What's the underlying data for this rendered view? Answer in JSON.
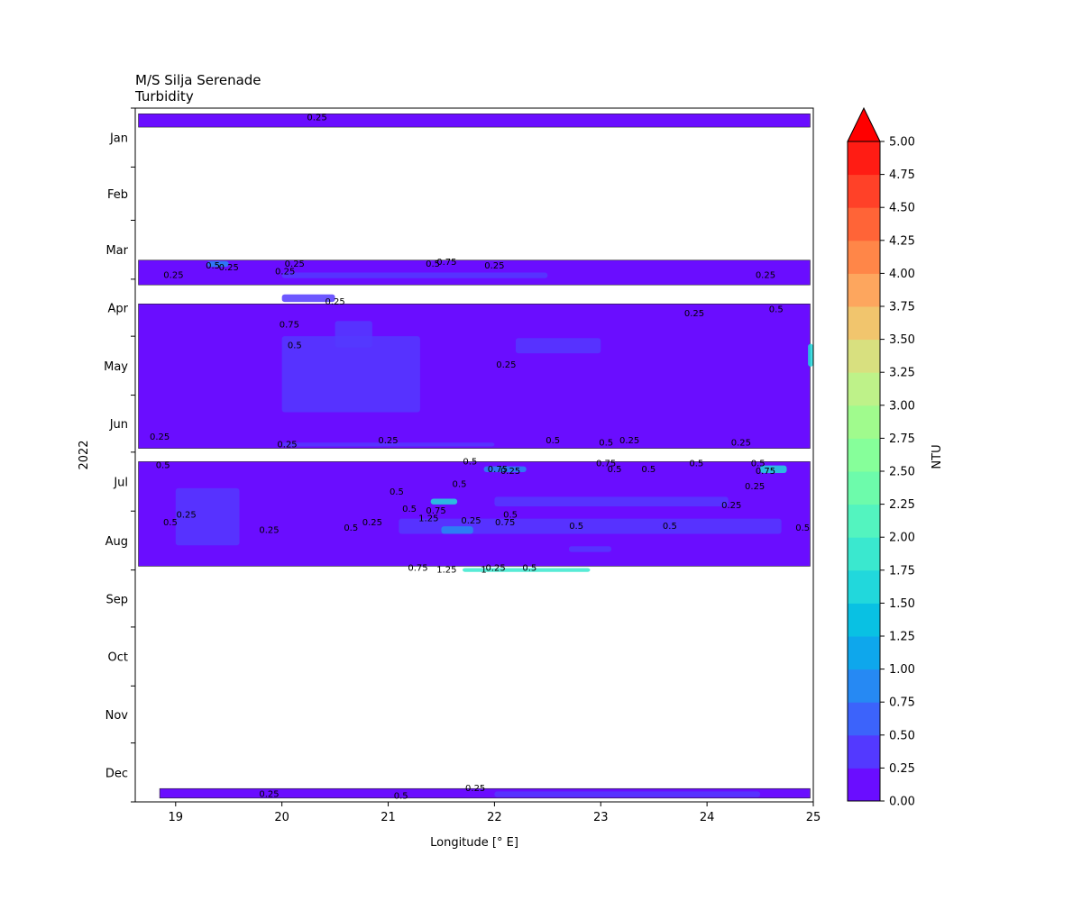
{
  "chart_data": {
    "type": "heatmap",
    "title_line1": "M/S Silja Serenade",
    "title_line2": "Turbidity",
    "xlabel": "Longitude [° E]",
    "ylabel": "2022",
    "xlim": [
      18.62,
      25.0
    ],
    "x_ticks": [
      "19",
      "20",
      "21",
      "22",
      "23",
      "24",
      "25"
    ],
    "y_months": [
      "Jan",
      "Feb",
      "Mar",
      "Apr",
      "May",
      "Jun",
      "Jul",
      "Aug",
      "Sep",
      "Oct",
      "Nov",
      "Dec"
    ],
    "colorbar": {
      "label": "NTU",
      "extend": "max",
      "levels": [
        "0.00",
        "0.25",
        "0.50",
        "0.75",
        "1.00",
        "1.25",
        "1.50",
        "1.75",
        "2.00",
        "2.25",
        "2.50",
        "2.75",
        "3.00",
        "3.25",
        "3.50",
        "3.75",
        "4.00",
        "4.25",
        "4.50",
        "4.75",
        "5.00"
      ],
      "colors": [
        "#6a0dff",
        "#5339ff",
        "#3c63fb",
        "#2689f3",
        "#0ea7ec",
        "#09c1e3",
        "#21d8dc",
        "#3ae8cf",
        "#53f4bf",
        "#6dfbab",
        "#86ff9a",
        "#a0fb8d",
        "#bef289",
        "#d8e07f",
        "#f1c56d",
        "#fda65e",
        "#ff8648",
        "#ff6437",
        "#ff4128",
        "#ff1c14"
      ],
      "extend_color": "#ff0000"
    },
    "bands": [
      {
        "start_doy": 3,
        "end_doy": 10,
        "x_start": 18.65,
        "x_end": 24.97,
        "fill": "#6a0dff"
      },
      {
        "start_doy": 80,
        "end_doy": 93,
        "x_start": 18.65,
        "x_end": 24.97,
        "fill": "#6a0dff"
      },
      {
        "start_doy": 103,
        "end_doy": 179,
        "x_start": 18.65,
        "x_end": 24.97,
        "fill": "#6a0dff"
      },
      {
        "start_doy": 186,
        "end_doy": 241,
        "x_start": 18.65,
        "x_end": 24.97,
        "fill": "#6a0dff"
      },
      {
        "start_doy": 358,
        "end_doy": 363,
        "x_start": 18.85,
        "x_end": 24.97,
        "fill": "#6a0dff"
      }
    ],
    "patches": [
      {
        "x": 20.0,
        "doy": 100,
        "w": 0.5,
        "h": 4,
        "c": "#5339ff"
      },
      {
        "x": 20.0,
        "doy": 140,
        "w": 1.3,
        "h": 40,
        "c": "#5339ff"
      },
      {
        "x": 22.2,
        "doy": 125,
        "w": 0.8,
        "h": 8,
        "c": "#5339ff"
      },
      {
        "x": 20.5,
        "doy": 119,
        "w": 0.35,
        "h": 14,
        "c": "#5339ff"
      },
      {
        "x": 22.0,
        "doy": 207,
        "w": 2.2,
        "h": 5,
        "c": "#5339ff"
      },
      {
        "x": 21.1,
        "doy": 220,
        "w": 3.6,
        "h": 8,
        "c": "#5339ff"
      },
      {
        "x": 19.0,
        "doy": 215,
        "w": 0.6,
        "h": 30,
        "c": "#5339ff"
      },
      {
        "x": 21.5,
        "doy": 222,
        "w": 0.3,
        "h": 4,
        "c": "#2689f3"
      },
      {
        "x": 21.4,
        "doy": 207,
        "w": 0.25,
        "h": 3,
        "c": "#21d8dc"
      },
      {
        "x": 21.9,
        "doy": 190,
        "w": 0.4,
        "h": 3,
        "c": "#2689f3"
      },
      {
        "x": 22.7,
        "doy": 232,
        "w": 0.4,
        "h": 3,
        "c": "#5339ff"
      },
      {
        "x": 24.5,
        "doy": 190,
        "w": 0.25,
        "h": 4,
        "c": "#21d8dc"
      },
      {
        "x": 21.7,
        "doy": 243,
        "w": 1.2,
        "h": 2,
        "c": "#3ae8cf"
      },
      {
        "x": 20.0,
        "doy": 88,
        "w": 2.5,
        "h": 3,
        "c": "#5339ff"
      },
      {
        "x": 22.0,
        "doy": 361,
        "w": 2.5,
        "h": 3,
        "c": "#5339ff"
      },
      {
        "x": 19.3,
        "doy": 82,
        "w": 0.2,
        "h": 3,
        "c": "#2689f3"
      },
      {
        "x": 24.95,
        "doy": 130,
        "w": 0.05,
        "h": 12,
        "c": "#21d8dc"
      },
      {
        "x": 20.0,
        "doy": 177,
        "w": 2.0,
        "h": 2,
        "c": "#5339ff"
      }
    ],
    "contour_labels": [
      {
        "x": 20.33,
        "doy": 5,
        "t": "0.25"
      },
      {
        "x": 19.35,
        "doy": 83,
        "t": "0.5"
      },
      {
        "x": 19.5,
        "doy": 84,
        "t": "0.25"
      },
      {
        "x": 20.12,
        "doy": 82,
        "t": "0.25"
      },
      {
        "x": 21.42,
        "doy": 82,
        "t": "0.5"
      },
      {
        "x": 21.55,
        "doy": 81,
        "t": "0.75"
      },
      {
        "x": 22.0,
        "doy": 83,
        "t": "0.25"
      },
      {
        "x": 18.98,
        "doy": 88,
        "t": "0.25"
      },
      {
        "x": 20.03,
        "doy": 86,
        "t": "0.25"
      },
      {
        "x": 24.55,
        "doy": 88,
        "t": "0.25"
      },
      {
        "x": 20.5,
        "doy": 102,
        "t": "0.25"
      },
      {
        "x": 23.88,
        "doy": 108,
        "t": "0.25"
      },
      {
        "x": 24.65,
        "doy": 106,
        "t": "0.5"
      },
      {
        "x": 20.07,
        "doy": 114,
        "t": "0.75"
      },
      {
        "x": 20.12,
        "doy": 125,
        "t": "0.5"
      },
      {
        "x": 22.11,
        "doy": 135,
        "t": "0.25"
      },
      {
        "x": 18.85,
        "doy": 173,
        "t": "0.25"
      },
      {
        "x": 20.05,
        "doy": 177,
        "t": "0.25"
      },
      {
        "x": 21.0,
        "doy": 175,
        "t": "0.25"
      },
      {
        "x": 22.55,
        "doy": 175,
        "t": "0.5"
      },
      {
        "x": 23.05,
        "doy": 176,
        "t": "0.5"
      },
      {
        "x": 23.27,
        "doy": 175,
        "t": "0.25"
      },
      {
        "x": 24.32,
        "doy": 176,
        "t": "0.25"
      },
      {
        "x": 18.88,
        "doy": 188,
        "t": "0.5"
      },
      {
        "x": 21.77,
        "doy": 186,
        "t": "0.5"
      },
      {
        "x": 22.03,
        "doy": 190,
        "t": "0.75"
      },
      {
        "x": 22.15,
        "doy": 191,
        "t": "0.25"
      },
      {
        "x": 23.05,
        "doy": 187,
        "t": "0.75"
      },
      {
        "x": 23.13,
        "doy": 190,
        "t": "0.5"
      },
      {
        "x": 23.45,
        "doy": 190,
        "t": "0.5"
      },
      {
        "x": 23.9,
        "doy": 187,
        "t": "0.5"
      },
      {
        "x": 24.48,
        "doy": 187,
        "t": "0.5"
      },
      {
        "x": 24.55,
        "doy": 191,
        "t": "0.75"
      },
      {
        "x": 24.45,
        "doy": 199,
        "t": "0.25"
      },
      {
        "x": 21.08,
        "doy": 202,
        "t": "0.5"
      },
      {
        "x": 21.67,
        "doy": 198,
        "t": "0.5"
      },
      {
        "x": 21.2,
        "doy": 211,
        "t": "0.5"
      },
      {
        "x": 21.45,
        "doy": 212,
        "t": "0.75"
      },
      {
        "x": 22.15,
        "doy": 214,
        "t": "0.5"
      },
      {
        "x": 21.38,
        "doy": 216,
        "t": "1.25"
      },
      {
        "x": 21.78,
        "doy": 217,
        "t": "0.25"
      },
      {
        "x": 22.1,
        "doy": 218,
        "t": "0.75"
      },
      {
        "x": 24.23,
        "doy": 209,
        "t": "0.25"
      },
      {
        "x": 19.1,
        "doy": 214,
        "t": "0.25"
      },
      {
        "x": 18.95,
        "doy": 218,
        "t": "0.5"
      },
      {
        "x": 19.88,
        "doy": 222,
        "t": "0.25"
      },
      {
        "x": 20.65,
        "doy": 221,
        "t": "0.5"
      },
      {
        "x": 20.85,
        "doy": 218,
        "t": "0.25"
      },
      {
        "x": 22.77,
        "doy": 220,
        "t": "0.5"
      },
      {
        "x": 23.65,
        "doy": 220,
        "t": "0.5"
      },
      {
        "x": 24.9,
        "doy": 221,
        "t": "0.5"
      },
      {
        "x": 21.28,
        "doy": 242,
        "t": "0.75"
      },
      {
        "x": 21.55,
        "doy": 243,
        "t": "1.25"
      },
      {
        "x": 21.9,
        "doy": 243,
        "t": "1"
      },
      {
        "x": 22.01,
        "doy": 242,
        "t": "0.25"
      },
      {
        "x": 22.33,
        "doy": 242,
        "t": "0.5"
      },
      {
        "x": 19.88,
        "doy": 361,
        "t": "0.25"
      },
      {
        "x": 21.12,
        "doy": 362,
        "t": "0.5"
      },
      {
        "x": 21.82,
        "doy": 358,
        "t": "0.25"
      }
    ]
  }
}
